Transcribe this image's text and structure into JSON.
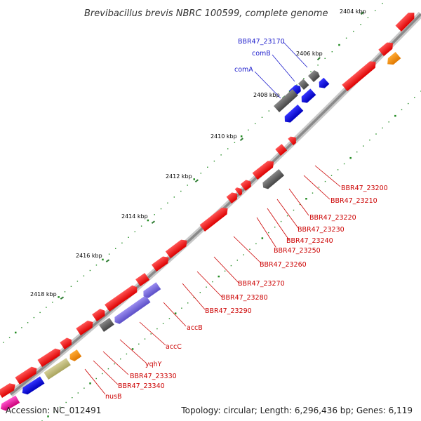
{
  "title": "Brevibacillus brevis NBRC 100599, complete genome",
  "ticks": [
    "2404 kbp",
    "2406 kbp",
    "2408 kbp",
    "2410 kbp",
    "2412 kbp",
    "2414 kbp",
    "2416 kbp",
    "2418 kbp"
  ],
  "gene_labels": {
    "bbr47_23170": "BBR47_23170",
    "comB": "comB",
    "comA": "comA",
    "bbr47_23200": "BBR47_23200",
    "bbr47_23210": "BBR47_23210",
    "bbr47_23220": "BBR47_23220",
    "bbr47_23230": "BBR47_23230",
    "bbr47_23240": "BBR47_23240",
    "bbr47_23250": "BBR47_23250",
    "bbr47_23260": "BBR47_23260",
    "bbr47_23270": "BBR47_23270",
    "bbr47_23280": "BBR47_23280",
    "bbr47_23290": "BBR47_23290",
    "accB": "accB",
    "accC": "accC",
    "yqhY": "yqhY",
    "bbr47_23330": "BBR47_23330",
    "bbr47_23340": "BBR47_23340",
    "nusB": "nusB"
  },
  "footer": {
    "accession": "Accession: NC_012491",
    "summary": "Topology: circular; Length: 6,296,436 bp; Genes: 6,119"
  },
  "colors": {
    "gene_red": "#ee0000",
    "gene_blue": "#0000dd",
    "gene_gray": "#666666",
    "gene_purple": "#7b68dd",
    "gene_orange": "#ff8c00",
    "gene_olive": "#bdb76b",
    "gene_magenta": "#ee1199",
    "backbone": "#888888",
    "gc_dots": "#228b22"
  }
}
